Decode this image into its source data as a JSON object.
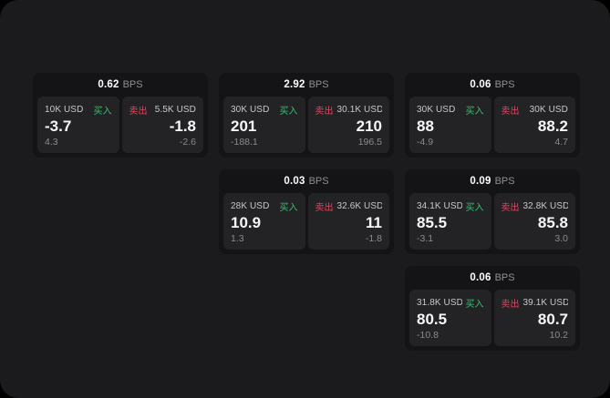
{
  "colors": {
    "backdrop": "#000000",
    "panel_background": "#1b1b1d",
    "card_background": "#141416",
    "subpanel_background": "#232326",
    "buy_green": "#3abf74",
    "sell_red": "#d94861",
    "primary_text": "#ffffff",
    "muted_text": "#8f8f94"
  },
  "cards": [
    {
      "row": 1,
      "col": 1,
      "bps_value": "0.62",
      "bps_label": "BPS",
      "buy": {
        "amount": "10K USD",
        "side_label": "买入",
        "price": "-3.7",
        "delta": "4.3"
      },
      "sell": {
        "side_label": "卖出",
        "amount": "5.5K USD",
        "price": "-1.8",
        "delta": "-2.6"
      }
    },
    {
      "row": 1,
      "col": 2,
      "bps_value": "2.92",
      "bps_label": "BPS",
      "buy": {
        "amount": "30K USD",
        "side_label": "买入",
        "price": "201",
        "delta": "-188.1"
      },
      "sell": {
        "side_label": "卖出",
        "amount": "30.1K USD",
        "price": "210",
        "delta": "196.5"
      }
    },
    {
      "row": 1,
      "col": 3,
      "bps_value": "0.06",
      "bps_label": "BPS",
      "buy": {
        "amount": "30K USD",
        "side_label": "买入",
        "price": "88",
        "delta": "-4.9"
      },
      "sell": {
        "side_label": "卖出",
        "amount": "30K USD",
        "price": "88.2",
        "delta": "4.7"
      }
    },
    {
      "row": 2,
      "col": 2,
      "bps_value": "0.03",
      "bps_label": "BPS",
      "buy": {
        "amount": "28K USD",
        "side_label": "买入",
        "price": "10.9",
        "delta": "1.3"
      },
      "sell": {
        "side_label": "卖出",
        "amount": "32.6K USD",
        "price": "11",
        "delta": "-1.8"
      }
    },
    {
      "row": 2,
      "col": 3,
      "bps_value": "0.09",
      "bps_label": "BPS",
      "buy": {
        "amount": "34.1K USD",
        "side_label": "买入",
        "price": "85.5",
        "delta": "-3.1"
      },
      "sell": {
        "side_label": "卖出",
        "amount": "32.8K USD",
        "price": "85.8",
        "delta": "3.0"
      }
    },
    {
      "row": 3,
      "col": 3,
      "bps_value": "0.06",
      "bps_label": "BPS",
      "buy": {
        "amount": "31.8K USD",
        "side_label": "买入",
        "price": "80.5",
        "delta": "-10.8"
      },
      "sell": {
        "side_label": "卖出",
        "amount": "39.1K USD",
        "price": "80.7",
        "delta": "10.2"
      }
    }
  ]
}
